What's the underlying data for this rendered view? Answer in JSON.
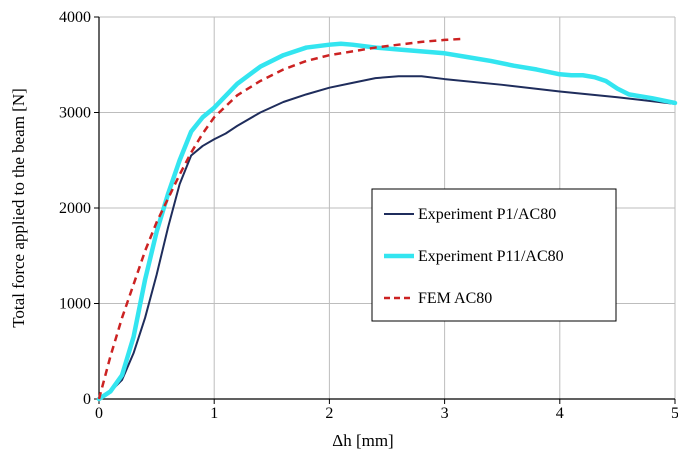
{
  "chart_data": {
    "type": "line",
    "title": "",
    "xlabel": "Δh [mm]",
    "ylabel": "Total force applied to the beam [N]",
    "xlim": [
      0,
      5
    ],
    "ylim": [
      0,
      4000
    ],
    "xticks": [
      0,
      1,
      2,
      3,
      4,
      5
    ],
    "yticks": [
      0,
      1000,
      2000,
      3000,
      4000
    ],
    "x_tick_labels": [
      "0",
      "1",
      "2",
      "3",
      "4",
      "5"
    ],
    "y_tick_labels": [
      "0",
      "1000",
      "2000",
      "3000",
      "4000"
    ],
    "grid": true,
    "legend_position": "center-right",
    "series": [
      {
        "name": "Experiment P1/AC80",
        "color": "#1f2d5c",
        "style": "solid",
        "x": [
          0,
          0.1,
          0.2,
          0.3,
          0.4,
          0.5,
          0.6,
          0.7,
          0.8,
          0.9,
          1.0,
          1.1,
          1.2,
          1.4,
          1.6,
          1.8,
          2.0,
          2.2,
          2.4,
          2.6,
          2.8,
          3.0,
          3.5,
          4.0,
          4.5,
          5.0
        ],
        "y": [
          0,
          80,
          200,
          480,
          850,
          1300,
          1800,
          2250,
          2550,
          2650,
          2720,
          2780,
          2860,
          3000,
          3110,
          3190,
          3260,
          3310,
          3360,
          3380,
          3380,
          3350,
          3290,
          3220,
          3160,
          3090
        ]
      },
      {
        "name": "Experiment P11/AC80",
        "color": "#33e5f0",
        "style": "solid",
        "x": [
          0,
          0.1,
          0.2,
          0.3,
          0.4,
          0.5,
          0.6,
          0.7,
          0.8,
          0.9,
          1.0,
          1.2,
          1.4,
          1.6,
          1.8,
          2.0,
          2.1,
          2.2,
          2.4,
          2.6,
          2.8,
          3.0,
          3.2,
          3.4,
          3.6,
          3.8,
          4.0,
          4.1,
          4.2,
          4.3,
          4.4,
          4.5,
          4.6,
          4.8,
          5.0
        ],
        "y": [
          0,
          80,
          250,
          650,
          1250,
          1750,
          2150,
          2500,
          2800,
          2950,
          3050,
          3300,
          3480,
          3600,
          3680,
          3710,
          3720,
          3710,
          3680,
          3660,
          3640,
          3620,
          3580,
          3540,
          3490,
          3450,
          3400,
          3390,
          3390,
          3370,
          3330,
          3250,
          3190,
          3150,
          3100
        ]
      },
      {
        "name": "FEM AC80",
        "color": "#cc2222",
        "style": "dashed",
        "x": [
          0,
          0.1,
          0.2,
          0.3,
          0.4,
          0.5,
          0.6,
          0.7,
          0.8,
          0.9,
          1.0,
          1.2,
          1.4,
          1.6,
          1.8,
          2.0,
          2.2,
          2.4,
          2.6,
          2.8,
          3.0,
          3.15
        ],
        "y": [
          0,
          450,
          850,
          1200,
          1550,
          1850,
          2100,
          2350,
          2580,
          2780,
          2950,
          3180,
          3330,
          3450,
          3540,
          3600,
          3640,
          3680,
          3710,
          3740,
          3760,
          3770
        ]
      }
    ]
  }
}
